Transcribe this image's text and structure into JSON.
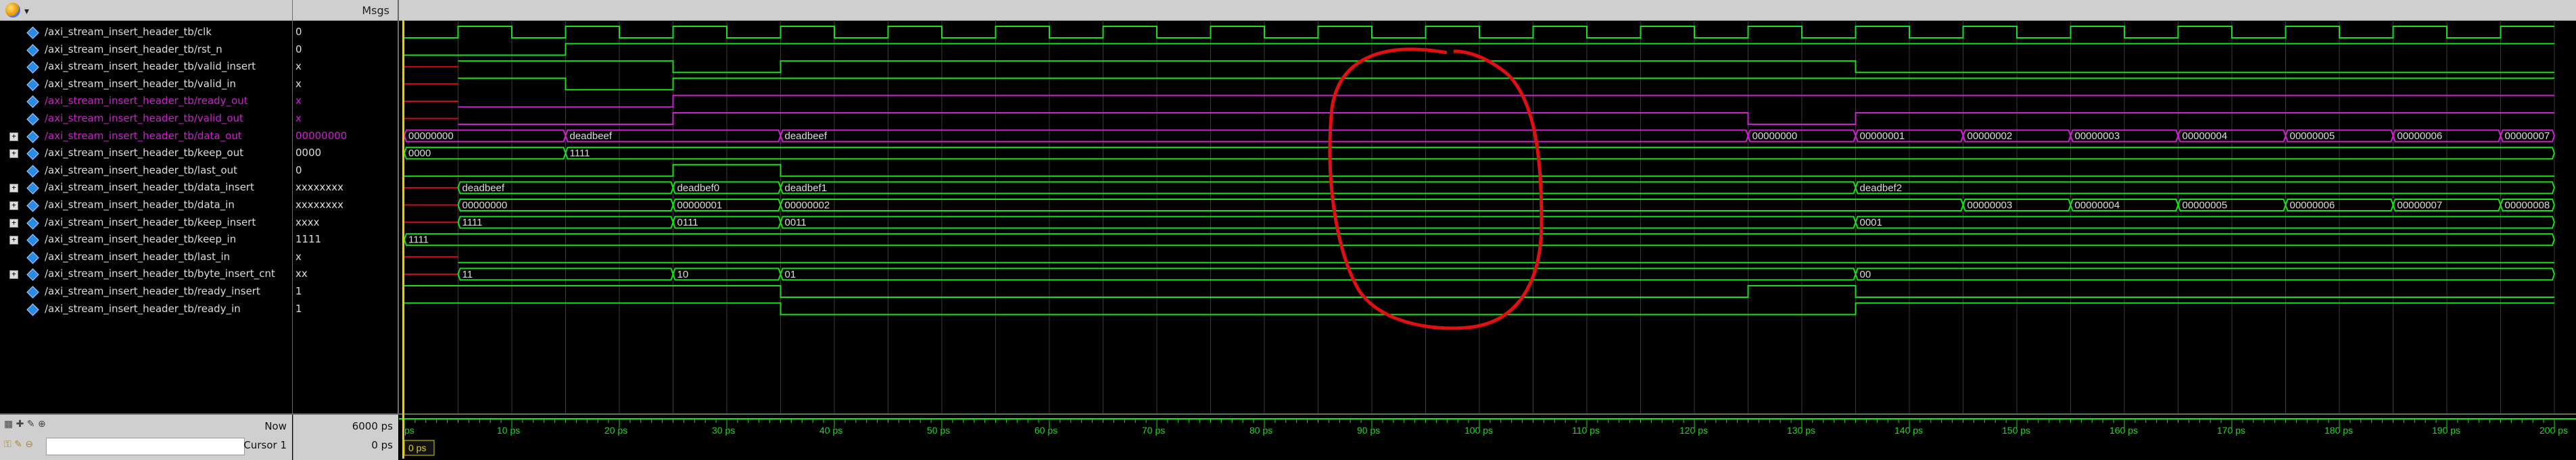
{
  "header": {
    "msgs_label": "Msgs"
  },
  "signals": [
    {
      "name": "/axi_stream_insert_header_tb/clk",
      "value": "0",
      "expandable": false,
      "magenta": false
    },
    {
      "name": "/axi_stream_insert_header_tb/rst_n",
      "value": "0",
      "expandable": false,
      "magenta": false
    },
    {
      "name": "/axi_stream_insert_header_tb/valid_insert",
      "value": "x",
      "expandable": false,
      "magenta": false
    },
    {
      "name": "/axi_stream_insert_header_tb/valid_in",
      "value": "x",
      "expandable": false,
      "magenta": false
    },
    {
      "name": "/axi_stream_insert_header_tb/ready_out",
      "value": "x",
      "expandable": false,
      "magenta": true
    },
    {
      "name": "/axi_stream_insert_header_tb/valid_out",
      "value": "x",
      "expandable": false,
      "magenta": true
    },
    {
      "name": "/axi_stream_insert_header_tb/data_out",
      "value": "00000000",
      "expandable": true,
      "magenta": true
    },
    {
      "name": "/axi_stream_insert_header_tb/keep_out",
      "value": "0000",
      "expandable": true,
      "magenta": false
    },
    {
      "name": "/axi_stream_insert_header_tb/last_out",
      "value": "0",
      "expandable": false,
      "magenta": false
    },
    {
      "name": "/axi_stream_insert_header_tb/data_insert",
      "value": "xxxxxxxx",
      "expandable": true,
      "magenta": false
    },
    {
      "name": "/axi_stream_insert_header_tb/data_in",
      "value": "xxxxxxxx",
      "expandable": true,
      "magenta": false
    },
    {
      "name": "/axi_stream_insert_header_tb/keep_insert",
      "value": "xxxx",
      "expandable": true,
      "magenta": false
    },
    {
      "name": "/axi_stream_insert_header_tb/keep_in",
      "value": "1111",
      "expandable": true,
      "magenta": false
    },
    {
      "name": "/axi_stream_insert_header_tb/last_in",
      "value": "x",
      "expandable": false,
      "magenta": false
    },
    {
      "name": "/axi_stream_insert_header_tb/byte_insert_cnt",
      "value": "xx",
      "expandable": true,
      "magenta": false
    },
    {
      "name": "/axi_stream_insert_header_tb/ready_insert",
      "value": "1",
      "expandable": false,
      "magenta": false
    },
    {
      "name": "/axi_stream_insert_header_tb/ready_in",
      "value": "1",
      "expandable": false,
      "magenta": false
    }
  ],
  "bus_values": {
    "data_out": [
      "00000000",
      "deadbeef",
      "deadbeef",
      "00000000",
      "00000001",
      "00000002",
      "00000003",
      "00000004",
      "00000005",
      "00000006",
      "00000007"
    ],
    "keep_out": [
      "0000",
      "1111"
    ],
    "data_insert": [
      "deadbeef",
      "deadbef0",
      "deadbef1",
      "deadbef2"
    ],
    "data_in": [
      "00000000",
      "00000001",
      "00000002",
      "00000003",
      "00000004",
      "00000005",
      "00000006",
      "00000007",
      "00000008"
    ],
    "keep_insert": [
      "1111",
      "0111",
      "0011",
      "0001"
    ],
    "keep_in": [
      "1111"
    ],
    "byte_insert_cnt": [
      "11",
      "10",
      "01",
      "00"
    ]
  },
  "timeline": {
    "ticks": [
      "ps",
      "10 ps",
      "20 ps",
      "30 ps",
      "40 ps",
      "50 ps",
      "60 ps",
      "70 ps",
      "80 ps",
      "90 ps",
      "100 ps",
      "110 ps",
      "120 ps",
      "130 ps",
      "140 ps",
      "150 ps",
      "160 ps",
      "170 ps",
      "180 ps",
      "190 ps",
      "200 ps"
    ],
    "cursor_time": "0 ps"
  },
  "status": {
    "now_label": "Now",
    "now_value": "6000 ps",
    "cursor_label": "Cursor 1",
    "cursor_value": "0 ps"
  },
  "colors": {
    "wave": "#18e018",
    "magenta": "#d020d0",
    "grid": "#3a3a3a",
    "cursor": "#e8d000",
    "annotation": "#e01010",
    "undefined": "#d01010"
  }
}
